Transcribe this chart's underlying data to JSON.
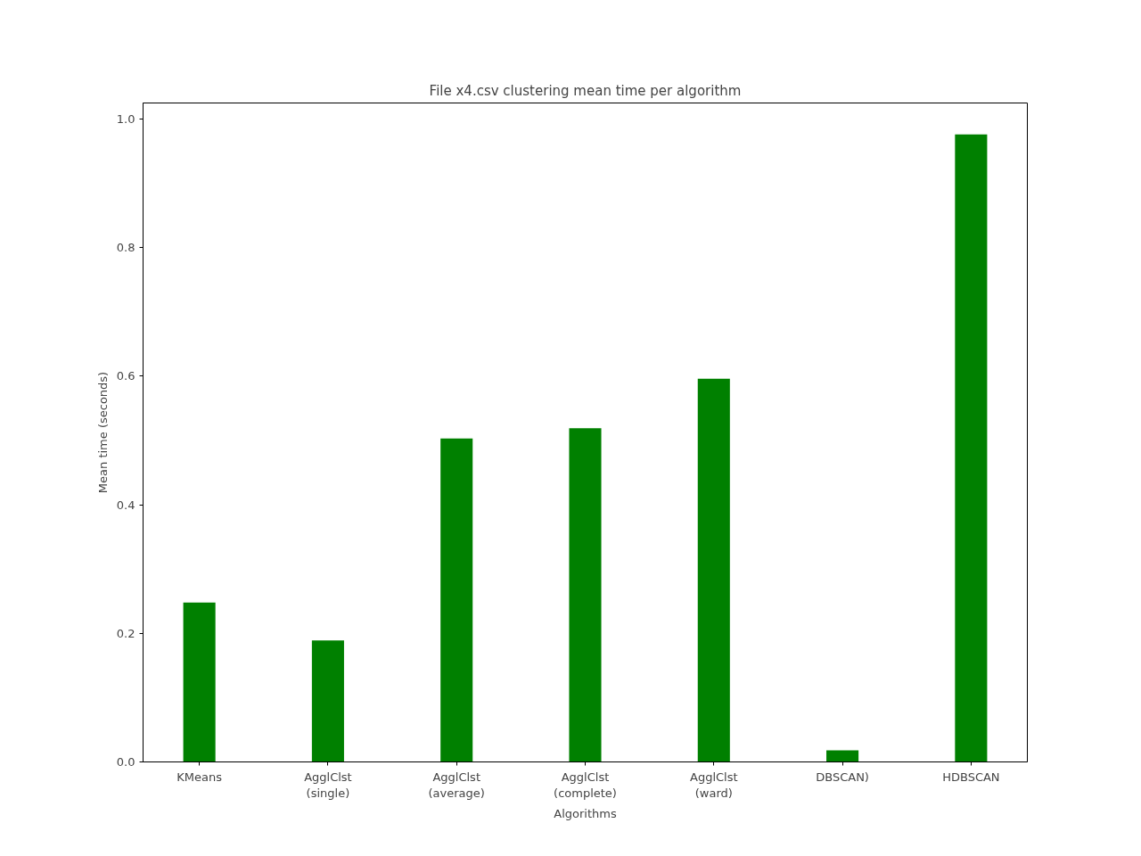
{
  "chart_data": {
    "type": "bar",
    "title": "File x4.csv clustering mean time per algorithm",
    "xlabel": "Algorithms",
    "ylabel": "Mean time (seconds)",
    "categories": [
      "KMeans",
      "AgglClst\n(single)",
      "AgglClst\n(average)",
      "AgglClst\n(complete)",
      "AgglClst\n(ward)",
      "DBSCAN)",
      "HDBSCAN"
    ],
    "values": [
      0.248,
      0.189,
      0.503,
      0.519,
      0.596,
      0.018,
      0.976
    ],
    "color": "#008000",
    "ylim": [
      0,
      1.025
    ],
    "yticks": [
      {
        "value": 0,
        "label": "0.0"
      },
      {
        "value": 0.2,
        "label": "0.2"
      },
      {
        "value": 0.4,
        "label": "0.4"
      },
      {
        "value": 0.6,
        "label": "0.6"
      },
      {
        "value": 0.8,
        "label": "0.8"
      },
      {
        "value": 1.0,
        "label": "1.0"
      }
    ],
    "grid": false
  }
}
